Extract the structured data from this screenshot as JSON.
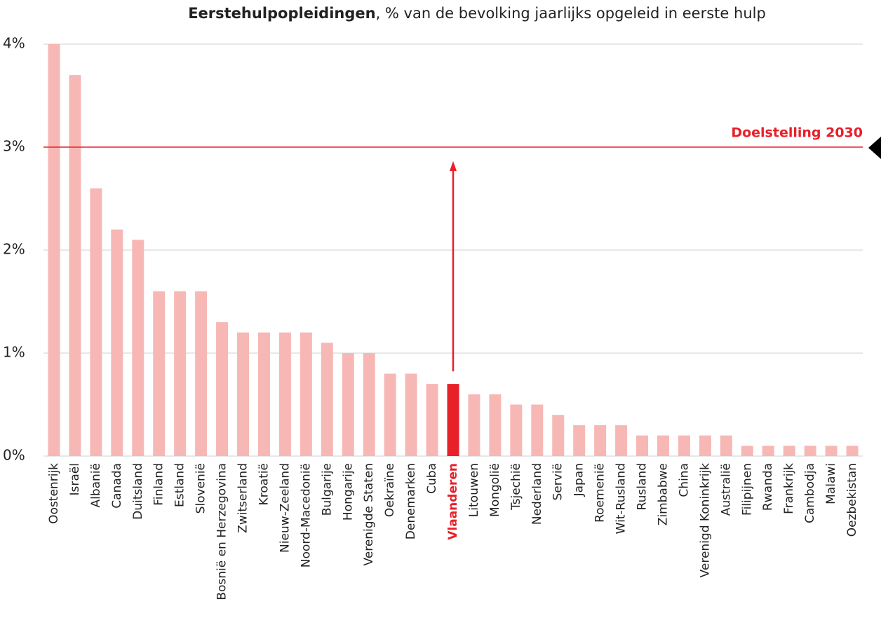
{
  "chart_data": {
    "type": "bar",
    "title": "Eerstehulpopleidingen",
    "subtitle": ", % van de bevolking jaarlijks opgeleid in eerste hulp",
    "categories": [
      "Oostenrijk",
      "Israël",
      "Albanië",
      "Canada",
      "Duitsland",
      "Finland",
      "Estland",
      "Slovenië",
      "Bosnië en Herzegovina",
      "Zwitserland",
      "Kroatië",
      "Nieuw-Zeeland",
      "Noord-Macedonië",
      "Bulgarije",
      "Hongarije",
      "Verenigde Staten",
      "Oekraïne",
      "Denemarken",
      "Cuba",
      "Vlaanderen",
      "Litouwen",
      "Mongolië",
      "Tsjechië",
      "Nederland",
      "Servië",
      "Japan",
      "Roemenië",
      "Wit-Rusland",
      "Rusland",
      "Zimbabwe",
      "China",
      "Verenigd Koninkrijk",
      "Australië",
      "Filipijnen",
      "Rwanda",
      "Frankrijk",
      "Cambodja",
      "Malawi",
      "Oezbekistan"
    ],
    "values": [
      4.0,
      3.7,
      2.6,
      2.2,
      2.1,
      1.6,
      1.6,
      1.6,
      1.3,
      1.2,
      1.2,
      1.2,
      1.2,
      1.1,
      1.0,
      1.0,
      0.8,
      0.8,
      0.7,
      0.7,
      0.6,
      0.6,
      0.5,
      0.5,
      0.4,
      0.3,
      0.3,
      0.3,
      0.2,
      0.2,
      0.2,
      0.2,
      0.2,
      0.1,
      0.1,
      0.1,
      0.1,
      0.1,
      0.1
    ],
    "color": "#f7b8b5",
    "highlight_index": 19,
    "highlight_color": "#e8202a",
    "target": {
      "label": "Doelstelling 2030",
      "value": 3
    },
    "ylim": [
      0,
      4
    ],
    "yticks": [
      {
        "value": 0,
        "label": "0%"
      },
      {
        "value": 1,
        "label": "1%"
      },
      {
        "value": 2,
        "label": "2%"
      },
      {
        "value": 3,
        "label": "3%"
      },
      {
        "value": 4,
        "label": "4%"
      }
    ],
    "grid": true
  }
}
